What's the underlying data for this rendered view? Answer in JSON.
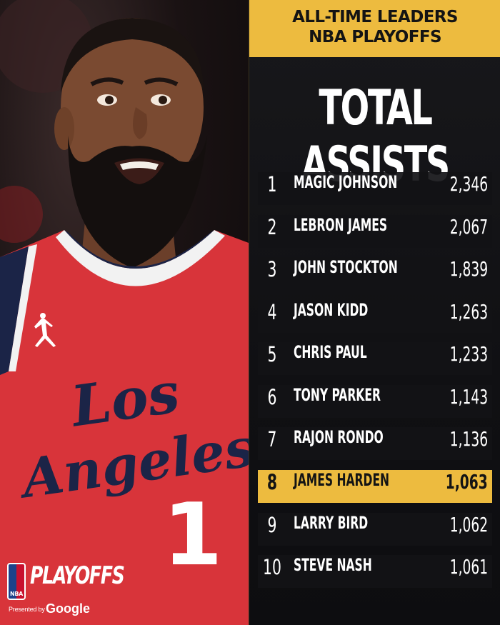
{
  "header": {
    "line1": "ALL-TIME LEADERS",
    "line2": "NBA PLAYOFFS"
  },
  "title": "TOTAL ASSISTS",
  "leaders": [
    {
      "rank": "1",
      "name": "MAGIC JOHNSON",
      "value": "2,346",
      "highlighted": false
    },
    {
      "rank": "2",
      "name": "LEBRON JAMES",
      "value": "2,067",
      "highlighted": false
    },
    {
      "rank": "3",
      "name": "JOHN STOCKTON",
      "value": "1,839",
      "highlighted": false
    },
    {
      "rank": "4",
      "name": "JASON KIDD",
      "value": "1,263",
      "highlighted": false
    },
    {
      "rank": "5",
      "name": "CHRIS PAUL",
      "value": "1,233",
      "highlighted": false
    },
    {
      "rank": "6",
      "name": "TONY PARKER",
      "value": "1,143",
      "highlighted": false
    },
    {
      "rank": "7",
      "name": "RAJON RONDO",
      "value": "1,136",
      "highlighted": false
    },
    {
      "rank": "8",
      "name": "JAMES HARDEN",
      "value": "1,063",
      "highlighted": true
    },
    {
      "rank": "9",
      "name": "LARRY BIRD",
      "value": "1,062",
      "highlighted": false
    },
    {
      "rank": "10",
      "name": "STEVE NASH",
      "value": "1,061",
      "highlighted": false
    }
  ],
  "photo": {
    "jersey_text_line1": "Los",
    "jersey_text_line2": "Angeles",
    "jersey_number": "1"
  },
  "branding": {
    "logo_text": "NBA",
    "playoffs": "PLAYOFFS",
    "presented_by": "Presented by",
    "sponsor": "Google"
  },
  "colors": {
    "accent_gold": "#edbb3f",
    "jersey_red": "#d8343a",
    "jersey_navy": "#1b2447",
    "panel_dark": "#111114"
  }
}
